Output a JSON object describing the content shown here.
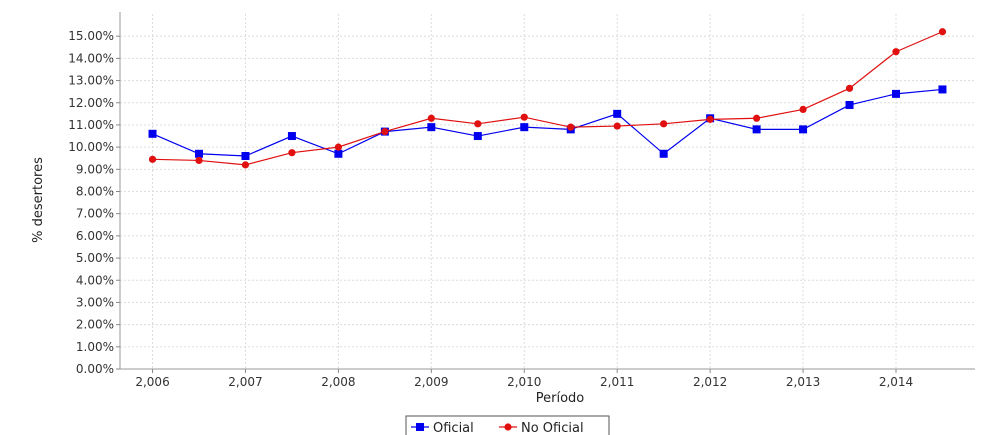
{
  "chart_data": {
    "type": "line",
    "title": "",
    "xlabel": "Período",
    "ylabel": "% desertores",
    "x": [
      2006,
      2006.5,
      2007,
      2007.5,
      2008,
      2008.5,
      2009,
      2009.5,
      2010,
      2010.5,
      2011,
      2011.5,
      2012,
      2012.5,
      2013,
      2013.5,
      2014,
      2014.5
    ],
    "xlim": [
      2005.65,
      2014.85
    ],
    "ylim": [
      0,
      16
    ],
    "grid": true,
    "legend_position": "bottom",
    "x_ticks": [
      {
        "value": 2006,
        "label": "2,006"
      },
      {
        "value": 2007,
        "label": "2,007"
      },
      {
        "value": 2008,
        "label": "2,008"
      },
      {
        "value": 2009,
        "label": "2,009"
      },
      {
        "value": 2010,
        "label": "2,010"
      },
      {
        "value": 2011,
        "label": "2,011"
      },
      {
        "value": 2012,
        "label": "2,012"
      },
      {
        "value": 2013,
        "label": "2,013"
      },
      {
        "value": 2014,
        "label": "2,014"
      }
    ],
    "y_ticks": [
      {
        "value": 0,
        "label": "0.00%"
      },
      {
        "value": 1,
        "label": "1.00%"
      },
      {
        "value": 2,
        "label": "2.00%"
      },
      {
        "value": 3,
        "label": "3.00%"
      },
      {
        "value": 4,
        "label": "4.00%"
      },
      {
        "value": 5,
        "label": "5.00%"
      },
      {
        "value": 6,
        "label": "6.00%"
      },
      {
        "value": 7,
        "label": "7.00%"
      },
      {
        "value": 8,
        "label": "8.00%"
      },
      {
        "value": 9,
        "label": "9.00%"
      },
      {
        "value": 10,
        "label": "10.00%"
      },
      {
        "value": 11,
        "label": "11.00%"
      },
      {
        "value": 12,
        "label": "12.00%"
      },
      {
        "value": 13,
        "label": "13.00%"
      },
      {
        "value": 14,
        "label": "14.00%"
      },
      {
        "value": 15,
        "label": "15.00%"
      }
    ],
    "series": [
      {
        "name": "Oficial",
        "color": "#0000ee",
        "marker": "square",
        "values": [
          10.6,
          9.7,
          9.6,
          10.5,
          9.7,
          10.7,
          10.9,
          10.5,
          10.9,
          10.8,
          11.5,
          9.7,
          11.3,
          10.8,
          10.8,
          11.9,
          12.4,
          12.6
        ]
      },
      {
        "name": "No Oficial",
        "color": "#e01010",
        "marker": "circle",
        "values": [
          9.45,
          9.4,
          9.2,
          9.75,
          10.0,
          10.7,
          11.3,
          11.05,
          11.35,
          10.9,
          10.95,
          11.05,
          11.25,
          11.3,
          11.7,
          12.65,
          14.3,
          15.2
        ]
      }
    ]
  }
}
